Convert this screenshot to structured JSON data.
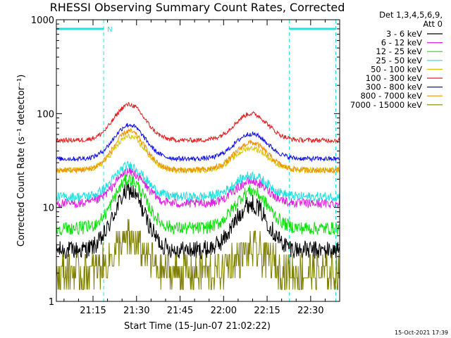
{
  "chart_data": {
    "type": "line",
    "title": "RHESSI Observing Summary Count Rates, Corrected",
    "xlabel": "Start Time (15-Jun-07 21:02:22)",
    "ylabel": "Corrected Count Rate (s⁻¹ detector⁻¹)",
    "y_scale": "log",
    "ylim": [
      1,
      1000
    ],
    "xlim": [
      "21:02:22",
      "22:40:00"
    ],
    "y_tick_labels": [
      "1",
      "10",
      "100",
      "1000"
    ],
    "x_tick_labels": [
      "21:15",
      "21:30",
      "21:45",
      "22:00",
      "22:15",
      "22:30"
    ],
    "legend": {
      "placement": "right",
      "header": [
        "Det 1,3,4,5,6,9,",
        "Att 0"
      ]
    },
    "annotations": {
      "night_flag_label": "N",
      "timestamp": "15-Oct-2021 17:39",
      "night_intervals": [
        [
          "21:02:22",
          "21:18:40"
        ],
        [
          "22:22:40",
          "22:38:40"
        ]
      ]
    },
    "series": [
      {
        "name": "3 - 6 keV",
        "color": "#000000",
        "base": 3.5,
        "peak1": 15,
        "peak2": 11,
        "noise": 0.1
      },
      {
        "name": "6 - 12 keV",
        "color": "#e020e0",
        "base": 11,
        "peak1": 24,
        "peak2": 19,
        "noise": 0.05
      },
      {
        "name": "12 - 25 keV",
        "color": "#10e010",
        "base": 6,
        "peak1": 20,
        "peak2": 15,
        "noise": 0.07
      },
      {
        "name": "25 - 50 keV",
        "color": "#20e0e0",
        "base": 13,
        "peak1": 28,
        "peak2": 22,
        "noise": 0.05
      },
      {
        "name": "50 - 100 keV",
        "color": "#d8c800",
        "base": 25,
        "peak1": 57,
        "peak2": 43,
        "noise": 0.03
      },
      {
        "name": "100 - 300 keV",
        "color": "#e02020",
        "base": 52,
        "peak1": 125,
        "peak2": 100,
        "noise": 0.025
      },
      {
        "name": "300 - 800 keV",
        "color": "#1010e0",
        "base": 33,
        "peak1": 76,
        "peak2": 61,
        "noise": 0.025
      },
      {
        "name": "800 - 7000 keV",
        "color": "#f09000",
        "base": 25,
        "peak1": 65,
        "peak2": 49,
        "noise": 0.03
      },
      {
        "name": "7000 - 15000 keV",
        "color": "#808000",
        "base": 2.0,
        "peak1": 4.5,
        "peak2": 3.5,
        "noise": 0.2
      }
    ]
  }
}
